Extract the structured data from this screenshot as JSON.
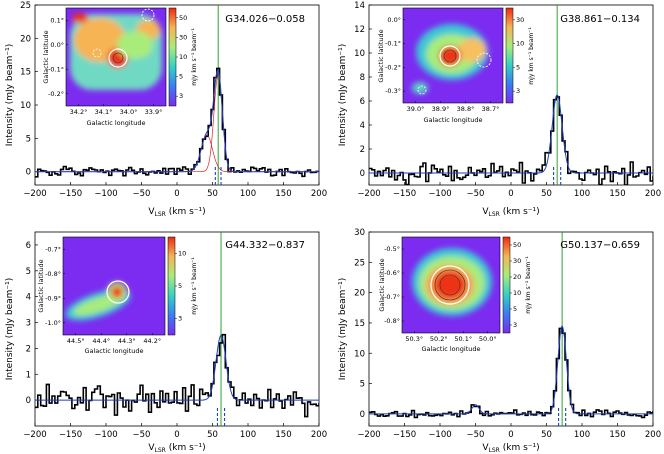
{
  "figure": {
    "xlabel_main": "V",
    "xlabel_sub": "LSR",
    "xlabel_unit": " (km s⁻¹)",
    "ylabel": "Intensity (mJy beam⁻¹)",
    "inset_xlabel": "Galactic longitude",
    "inset_ylabel": "Galactic latitude",
    "colorbar_label": "mJy km s⁻¹ beam⁻¹"
  },
  "chart_data": [
    {
      "type": "line",
      "title": "G34.026−0.058",
      "xlim": [
        -200,
        200
      ],
      "ylim": [
        -2,
        25
      ],
      "xticks": [
        -200,
        -150,
        -100,
        -50,
        0,
        50,
        100,
        150,
        200
      ],
      "yticks": [
        0,
        5,
        10,
        15,
        20,
        25
      ],
      "components": [
        {
          "center": 58,
          "amplitude": 14.5,
          "sigma": 6
        },
        {
          "center": 42,
          "amplitude": 5.5,
          "sigma": 8
        }
      ],
      "component_line": true,
      "vlsr_green": 58,
      "blue_markers": [
        54,
        62
      ],
      "noise": 0.3,
      "inset": {
        "xticks": [
          "34.2°",
          "34.1°",
          "34.0°",
          "33.9°"
        ],
        "yticks": [
          "0.1°",
          "0.0°",
          "-0.1°",
          "-0.2°"
        ],
        "colorbar_ticks": [
          "50",
          "30",
          "10",
          "5",
          "3"
        ]
      }
    },
    {
      "type": "line",
      "title": "G38.861−0.134",
      "xlim": [
        -200,
        200
      ],
      "ylim": [
        -1,
        14
      ],
      "xticks": [
        -200,
        -150,
        -100,
        -50,
        0,
        50,
        100,
        150,
        200
      ],
      "yticks": [
        0,
        2,
        4,
        6,
        8,
        10,
        12,
        14
      ],
      "components": [
        {
          "center": 65,
          "amplitude": 6.5,
          "sigma": 7
        }
      ],
      "component_line": false,
      "vlsr_green": 65,
      "blue_markers": [
        60,
        70
      ],
      "noise": 0.4,
      "inset": {
        "xticks": [
          "39.0°",
          "38.9°",
          "38.8°",
          "38.7°"
        ],
        "yticks": [
          "0.0°",
          "-0.1°",
          "-0.2°",
          "-0.3°"
        ],
        "colorbar_ticks": [
          "30",
          "10",
          "5",
          "3"
        ]
      }
    },
    {
      "type": "line",
      "title": "G44.332−0.837",
      "xlim": [
        -200,
        200
      ],
      "ylim": [
        -1,
        6.5
      ],
      "xticks": [
        -200,
        -150,
        -100,
        -50,
        0,
        50,
        100,
        150,
        200
      ],
      "yticks": [
        0,
        1,
        2,
        3,
        4,
        5,
        6
      ],
      "components": [
        {
          "center": 62,
          "amplitude": 2.5,
          "sigma": 7
        }
      ],
      "component_line": false,
      "vlsr_green": 62,
      "blue_markers": [
        57,
        67
      ],
      "noise": 0.25,
      "inset": {
        "xticks": [
          "44.5°",
          "44.4°",
          "44.3°",
          "44.2°"
        ],
        "yticks": [
          "-0.7°",
          "-0.8°",
          "-0.9°",
          "-1.0°"
        ],
        "colorbar_ticks": [
          "10",
          "5",
          "3"
        ]
      }
    },
    {
      "type": "line",
      "title": "G50.137−0.659",
      "xlim": [
        -200,
        200
      ],
      "ylim": [
        -2,
        30
      ],
      "xticks": [
        -200,
        -150,
        -100,
        -50,
        0,
        50,
        100,
        150,
        200
      ],
      "yticks": [
        0,
        5,
        10,
        15,
        20,
        25,
        30
      ],
      "components": [
        {
          "center": 72,
          "amplitude": 14.5,
          "sigma": 6
        },
        {
          "center": -50,
          "amplitude": 1.5,
          "sigma": 5
        }
      ],
      "component_line": false,
      "vlsr_green": 72,
      "blue_markers": [
        67,
        77
      ],
      "noise": 0.3,
      "inset": {
        "xticks": [
          "50.3°",
          "50.2°",
          "50.1°",
          "50.0°"
        ],
        "yticks": [
          "-0.5°",
          "-0.6°",
          "-0.7°",
          "-0.8°"
        ],
        "colorbar_ticks": [
          "50",
          "30",
          "20",
          "10",
          "5",
          "3"
        ]
      }
    }
  ]
}
